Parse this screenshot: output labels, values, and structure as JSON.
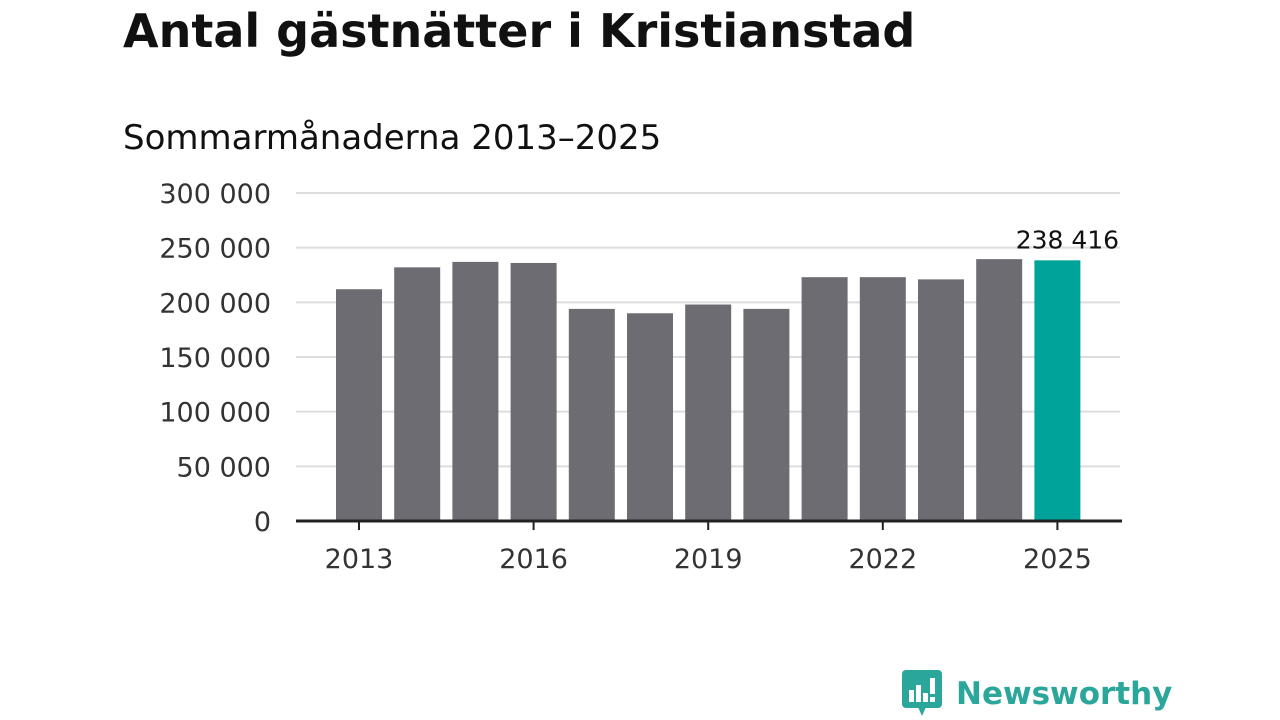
{
  "title": "Antal gästnätter i Kristianstad",
  "subtitle": "Sommarmånaderna 2013–2025",
  "brand": {
    "name": "Newsworthy",
    "color": "#2aa69a",
    "icon": "newsworthy-logo-icon"
  },
  "colors": {
    "bar": "#6d6c72",
    "highlight": "#00a39a",
    "grid": "#dddddd",
    "axis": "#222222"
  },
  "chart_data": {
    "type": "bar",
    "title": "Antal gästnätter i Kristianstad",
    "subtitle": "Sommarmånaderna 2013–2025",
    "xlabel": "",
    "ylabel": "",
    "categories": [
      "2013",
      "2014",
      "2015",
      "2016",
      "2017",
      "2018",
      "2019",
      "2020",
      "2021",
      "2022",
      "2023",
      "2024",
      "2025"
    ],
    "values": [
      212000,
      232000,
      237000,
      236000,
      194000,
      190000,
      198000,
      194000,
      223000,
      223000,
      221000,
      239500,
      238416
    ],
    "highlight_index": 12,
    "highlight_label": "238 416",
    "x_tick_labels": [
      "2013",
      "2016",
      "2019",
      "2022",
      "2025"
    ],
    "y_ticks": [
      0,
      50000,
      100000,
      150000,
      200000,
      250000,
      300000
    ],
    "y_tick_labels": [
      "0",
      "50 000",
      "100 000",
      "150 000",
      "200 000",
      "250 000",
      "300 000"
    ],
    "ylim": [
      0,
      300000
    ],
    "grid": true
  }
}
